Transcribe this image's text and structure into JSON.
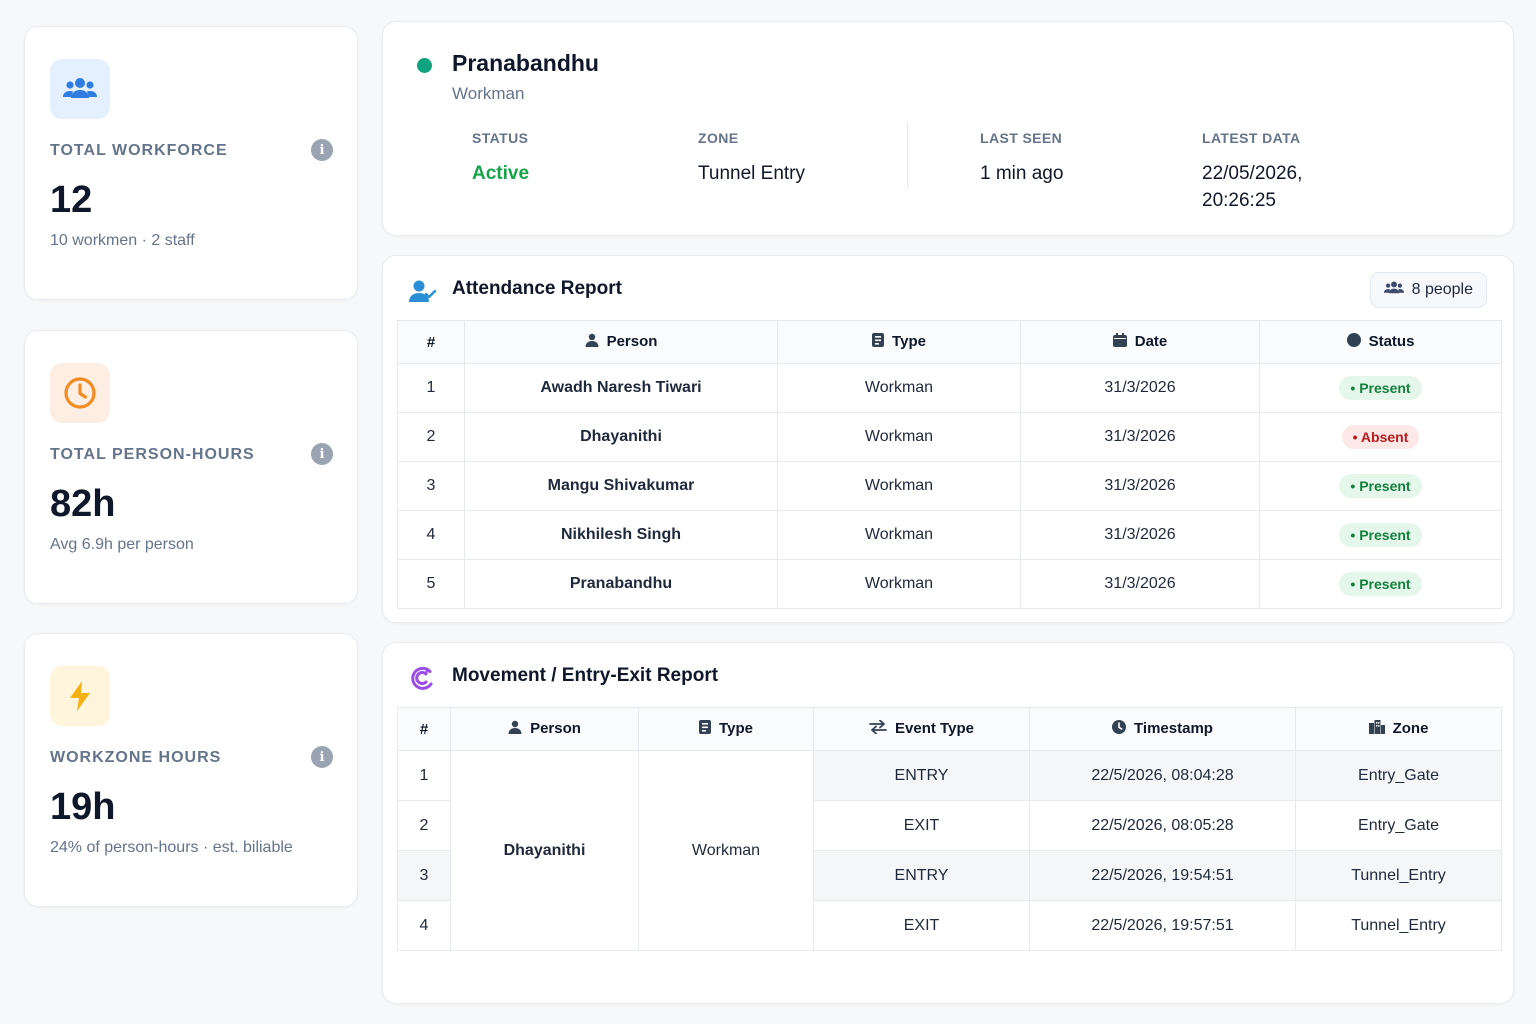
{
  "stats": [
    {
      "label": "TOTAL WORKFORCE",
      "value": "12",
      "sub": "10 workmen · 2 staff",
      "icon": "users-icon",
      "icon_bg": "#e5f0fe",
      "icon_color": "#2f7de1"
    },
    {
      "label": "TOTAL PERSON-HOURS",
      "value": "82h",
      "sub": "Avg 6.9h per person",
      "icon": "clock-icon",
      "icon_bg": "#fdeee3",
      "icon_color": "#f28b22"
    },
    {
      "label": "WORKZONE HOURS",
      "value": "19h",
      "sub": "24% of person-hours · est. biliable",
      "icon": "bolt-icon",
      "icon_bg": "#fff4dc",
      "icon_color": "#f5b014"
    }
  ],
  "profile": {
    "name": "Pranabandhu",
    "role": "Workman",
    "status_label": "STATUS",
    "status_value": "Active",
    "zone_label": "ZONE",
    "zone_value": "Tunnel Entry",
    "last_seen_label": "LAST SEEN",
    "last_seen_value": "1 min ago",
    "latest_data_label": "LATEST DATA",
    "latest_data_line1": "22/05/2026,",
    "latest_data_line2": "20:26:25"
  },
  "attendance": {
    "title": "Attendance Report",
    "people_badge": "8 people",
    "columns": [
      "#",
      "Person",
      "Type",
      "Date",
      "Status"
    ],
    "rows": [
      {
        "n": "1",
        "person": "Awadh Naresh Tiwari",
        "type": "Workman",
        "date": "31/3/2026",
        "status": "Present"
      },
      {
        "n": "2",
        "person": "Dhayanithi",
        "type": "Workman",
        "date": "31/3/2026",
        "status": "Absent"
      },
      {
        "n": "3",
        "person": "Mangu Shivakumar",
        "type": "Workman",
        "date": "31/3/2026",
        "status": "Present"
      },
      {
        "n": "4",
        "person": "Nikhilesh Singh",
        "type": "Workman",
        "date": "31/3/2026",
        "status": "Present"
      },
      {
        "n": "5",
        "person": "Pranabandhu",
        "type": "Workman",
        "date": "31/3/2026",
        "status": "Present"
      }
    ]
  },
  "movement": {
    "title": "Movement / Entry-Exit Report",
    "columns": [
      "#",
      "Person",
      "Type",
      "Event Type",
      "Timestamp",
      "Zone"
    ],
    "person": "Dhayanithi",
    "type": "Workman",
    "rows": [
      {
        "n": "1",
        "event": "ENTRY",
        "timestamp": "22/5/2026, 08:04:28",
        "zone": "Entry_Gate"
      },
      {
        "n": "2",
        "event": "EXIT",
        "timestamp": "22/5/2026, 08:05:28",
        "zone": "Entry_Gate"
      },
      {
        "n": "3",
        "event": "ENTRY",
        "timestamp": "22/5/2026, 19:54:51",
        "zone": "Tunnel_Entry"
      },
      {
        "n": "4",
        "event": "EXIT",
        "timestamp": "22/5/2026, 19:57:51",
        "zone": "Tunnel_Entry"
      }
    ]
  },
  "colors": {
    "accent_green": "#10a37f",
    "active_text": "#16a34a"
  }
}
